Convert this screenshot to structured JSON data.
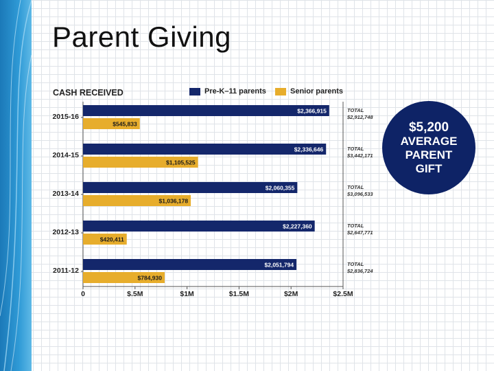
{
  "slide": {
    "title": "Parent Giving"
  },
  "callout": {
    "amount": "$5,200",
    "line1": "AVERAGE",
    "line2": "PARENT",
    "line3": "GIFT"
  },
  "colors": {
    "prek11": "#14276b",
    "senior": "#e7ad2c",
    "circle": "#0e2366",
    "sidebar": "#2f9ad6"
  },
  "chart_data": {
    "type": "bar",
    "orientation": "horizontal",
    "title": "CASH RECEIVED",
    "categories": [
      "2015-16",
      "2014-15",
      "2013-14",
      "2012-13",
      "2011-12"
    ],
    "series": [
      {
        "name": "Pre-K–11 parents",
        "values": [
          2366915,
          2336646,
          2060355,
          2227360,
          2051794
        ],
        "labels": [
          "$2,366,915",
          "$2,336,646",
          "$2,060,355",
          "$2,227,360",
          "$2,051,794"
        ]
      },
      {
        "name": "Senior parents",
        "values": [
          545833,
          1105525,
          1036178,
          420411,
          784930
        ],
        "labels": [
          "$545,833",
          "$1,105,525",
          "$1,036,178",
          "$420,411",
          "$784,930"
        ]
      }
    ],
    "totals_label": "TOTAL",
    "totals": [
      "$2,912,748",
      "$3,442,171",
      "$3,096,533",
      "$2,647,771",
      "$2,836,724"
    ],
    "xlim": [
      0,
      2500000
    ],
    "xticks": [
      0,
      500000,
      1000000,
      1500000,
      2000000,
      2500000
    ],
    "xtick_labels": [
      "0",
      "$.5M",
      "$1M",
      "$1.5M",
      "$2M",
      "$2.5M"
    ],
    "grid": false,
    "legend_position": "top"
  }
}
